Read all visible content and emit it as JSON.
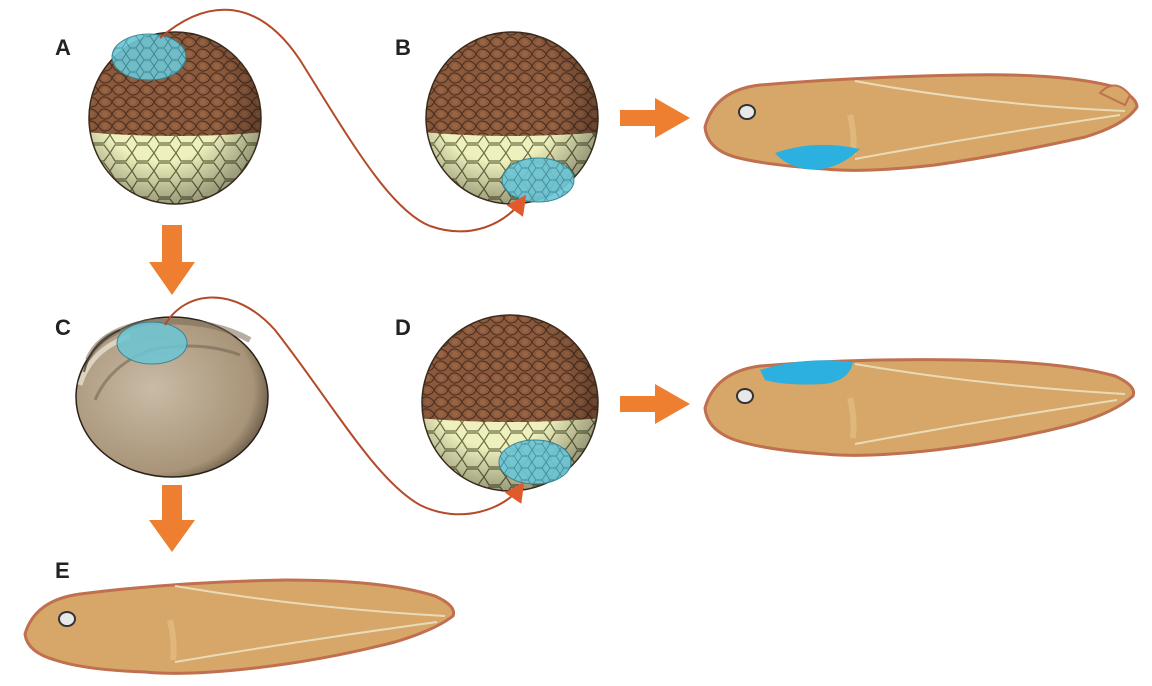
{
  "labels": {
    "a": "A",
    "b": "B",
    "c": "C",
    "d": "D",
    "e": "E"
  },
  "colors": {
    "animal_pole": "#8a5a3c",
    "vegetal_pole": "#eeeebb",
    "tissue_patch": "#6cc6d6",
    "tadpole_body": "#d6a768",
    "tadpole_edge": "#c0704e",
    "blue_organ": "#2bb0e0",
    "transplant_line": "#b44a2a",
    "flow_arrow": "#ee7f30"
  },
  "icons": {
    "flow_arrows": "orange-arrow",
    "transplant_arrows": "curved-arrow"
  }
}
